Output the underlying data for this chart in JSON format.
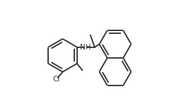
{
  "bg_color": "#ffffff",
  "line_color": "#3a3a3a",
  "line_width": 1.4,
  "font_size_label": 7.5,
  "Cl_label": "Cl",
  "NH_label": "NH",
  "figsize": [
    2.77,
    1.5
  ],
  "dpi": 100
}
